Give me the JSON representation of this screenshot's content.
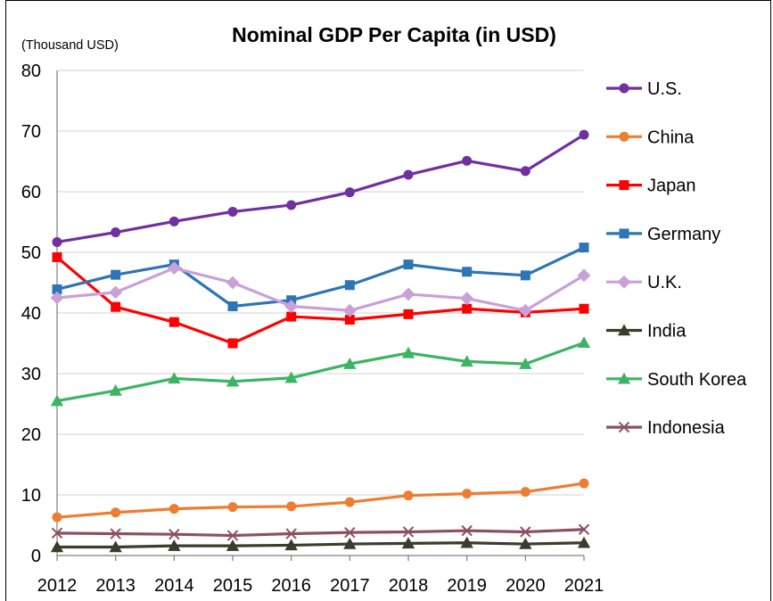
{
  "chart_data": {
    "type": "line",
    "title": "Nominal GDP Per Capita (in USD)",
    "unit_label": "(Thousand  USD)",
    "xlabel": "",
    "ylabel": "",
    "ylim": [
      0,
      80
    ],
    "yticks": [
      0,
      10,
      20,
      30,
      40,
      50,
      60,
      70,
      80
    ],
    "grid": "horizontal",
    "legend_position": "right",
    "categories": [
      "2012",
      "2013",
      "2014",
      "2015",
      "2016",
      "2017",
      "2018",
      "2019",
      "2020",
      "2021"
    ],
    "series": [
      {
        "name": "U.S.",
        "color": "#7030a0",
        "marker": "circle",
        "values": [
          51.7,
          53.3,
          55.1,
          56.7,
          57.8,
          59.9,
          62.8,
          65.1,
          63.4,
          69.4
        ]
      },
      {
        "name": "China",
        "color": "#ed7d31",
        "marker": "circle",
        "values": [
          6.3,
          7.1,
          7.7,
          8.0,
          8.1,
          8.8,
          9.9,
          10.2,
          10.5,
          11.9
        ]
      },
      {
        "name": "Japan",
        "color": "#ff0000",
        "marker": "square",
        "values": [
          49.2,
          41.0,
          38.5,
          35.0,
          39.4,
          38.9,
          39.8,
          40.7,
          40.1,
          40.7
        ]
      },
      {
        "name": "Germany",
        "color": "#2e75b6",
        "marker": "square",
        "values": [
          43.9,
          46.3,
          48.0,
          41.1,
          42.1,
          44.6,
          48.0,
          46.8,
          46.2,
          50.8
        ]
      },
      {
        "name": "U.K.",
        "color": "#c9a0d8",
        "marker": "diamond",
        "values": [
          42.5,
          43.4,
          47.4,
          45.0,
          41.1,
          40.4,
          43.1,
          42.4,
          40.4,
          46.2
        ]
      },
      {
        "name": "India",
        "color": "#3c3c2c",
        "marker": "triangle",
        "values": [
          1.4,
          1.4,
          1.6,
          1.6,
          1.7,
          1.9,
          2.0,
          2.1,
          1.9,
          2.1
        ]
      },
      {
        "name": "South Korea",
        "color": "#3cb464",
        "marker": "triangle",
        "values": [
          25.5,
          27.2,
          29.2,
          28.7,
          29.3,
          31.6,
          33.4,
          32.0,
          31.6,
          35.1
        ]
      },
      {
        "name": "Indonesia",
        "color": "#8c5060",
        "marker": "cross",
        "values": [
          3.7,
          3.6,
          3.5,
          3.3,
          3.6,
          3.8,
          3.9,
          4.1,
          3.9,
          4.3
        ]
      }
    ]
  }
}
